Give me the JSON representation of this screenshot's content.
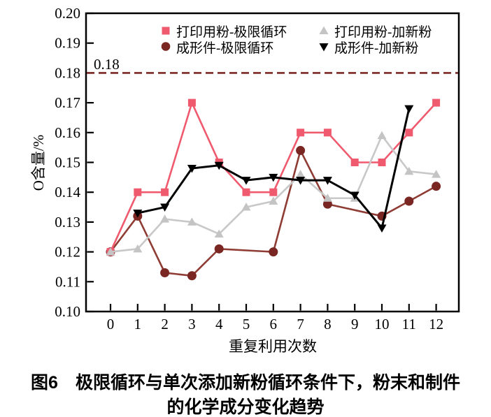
{
  "figure": {
    "caption_line1": "图6　极限循环与单次添加新粉循环条件下，粉末和制件",
    "caption_line2": "的化学成分变化趋势"
  },
  "chart_data": {
    "type": "line",
    "title": "",
    "xlabel": "重复利用次数",
    "ylabel": "O含量/%",
    "ylim": [
      0.1,
      0.2
    ],
    "xticks": [
      0,
      1,
      2,
      3,
      4,
      5,
      6,
      7,
      8,
      9,
      10,
      11,
      12
    ],
    "ytick_labels": [
      "0.10",
      "0.11",
      "0.12",
      "0.13",
      "0.14",
      "0.15",
      "0.16",
      "0.17",
      "0.18",
      "0.19",
      "0.20"
    ],
    "grid": "off",
    "legend_position": "top-inside",
    "frame_color": "#000000",
    "refline": {
      "value": 0.18,
      "label": "0.18",
      "color": "#7d2a26",
      "style": "dashed"
    },
    "series": [
      {
        "name": "打印用粉-极限循环",
        "marker": "square",
        "color": "#ef5a6e",
        "marker_color": "#ef5a6e",
        "x": [
          0,
          1,
          2,
          3,
          4,
          5,
          6,
          7,
          8,
          9,
          10,
          11,
          12
        ],
        "values": [
          0.12,
          0.14,
          0.14,
          0.17,
          0.15,
          0.14,
          0.14,
          0.16,
          0.16,
          0.15,
          0.15,
          0.16,
          0.17
        ]
      },
      {
        "name": "打印用粉-加新粉",
        "marker": "triangle-up",
        "color": "#c8c8c8",
        "marker_color": "#c4c4c4",
        "x": [
          0,
          1,
          2,
          3,
          4,
          5,
          6,
          7,
          8,
          9,
          10,
          11,
          12
        ],
        "values": [
          0.12,
          0.121,
          0.131,
          0.13,
          0.126,
          0.135,
          0.137,
          0.146,
          0.138,
          0.138,
          0.159,
          0.147,
          0.146
        ]
      },
      {
        "name": "成形件-极限循环",
        "marker": "circle",
        "color": "#8e3c34",
        "marker_color": "#7a2723",
        "x": [
          0,
          1,
          2,
          3,
          4,
          6,
          7,
          8,
          10,
          11,
          12
        ],
        "values": [
          0.12,
          0.132,
          0.113,
          0.112,
          0.121,
          0.12,
          0.154,
          0.136,
          0.132,
          0.137,
          0.142
        ]
      },
      {
        "name": "成形件-加新粉",
        "marker": "triangle-down",
        "color": "#000000",
        "marker_color": "#000000",
        "x": [
          1,
          2,
          3,
          4,
          5,
          6,
          7,
          8,
          9,
          10,
          11
        ],
        "values": [
          0.133,
          0.135,
          0.148,
          0.149,
          0.144,
          0.145,
          0.144,
          0.144,
          0.139,
          0.128,
          0.168
        ]
      }
    ]
  }
}
